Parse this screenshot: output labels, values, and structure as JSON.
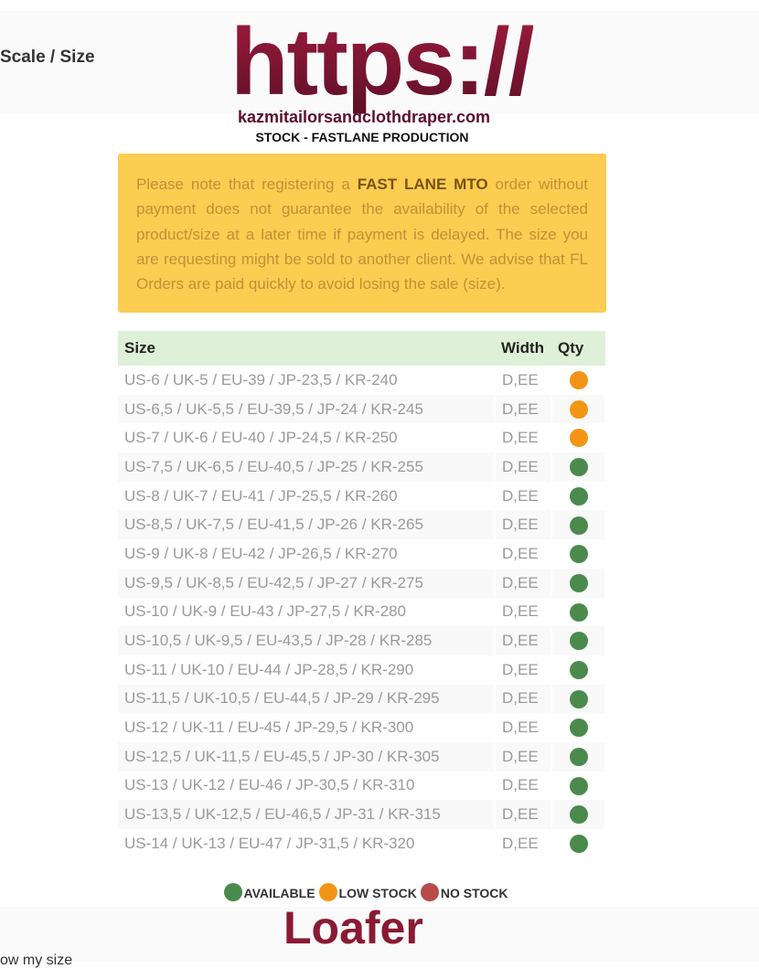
{
  "header": {
    "scale_label": "Scale / Size",
    "watermark": "https://",
    "site": "kazmitailorsandclothdraper.com",
    "subtitle": "STOCK - FASTLANE PRODUCTION"
  },
  "notice": {
    "before": "Please note that registering a",
    "bold": "FAST LANE MTO",
    "after": "order without payment does not guarantee the availability of the selected product/size at a later time if payment is delayed. The size you are requesting might be sold to another client. We advise that FL Orders are paid quickly to avoid losing the sale (size)."
  },
  "table": {
    "headers": [
      "Size",
      "Width",
      "Qty"
    ],
    "rows": [
      {
        "size": "US-6 / UK-5 / EU-39 / JP-23,5 / KR-240",
        "width": "D,EE",
        "qty_color": "#f39415"
      },
      {
        "size": "US-6,5 / UK-5,5 / EU-39,5 / JP-24 / KR-245",
        "width": "D,EE",
        "qty_color": "#f39415"
      },
      {
        "size": "US-7 / UK-6 / EU-40 / JP-24,5 / KR-250",
        "width": "D,EE",
        "qty_color": "#f39415"
      },
      {
        "size": "US-7,5 / UK-6,5 / EU-40,5 / JP-25 / KR-255",
        "width": "D,EE",
        "qty_color": "#4a8a4d"
      },
      {
        "size": "US-8 / UK-7 / EU-41 / JP-25,5 / KR-260",
        "width": "D,EE",
        "qty_color": "#4a8a4d"
      },
      {
        "size": "US-8,5 / UK-7,5 / EU-41,5 / JP-26 / KR-265",
        "width": "D,EE",
        "qty_color": "#4a8a4d"
      },
      {
        "size": "US-9 / UK-8 / EU-42 / JP-26,5 / KR-270",
        "width": "D,EE",
        "qty_color": "#4a8a4d"
      },
      {
        "size": "US-9,5 / UK-8,5 / EU-42,5 / JP-27 / KR-275",
        "width": "D,EE",
        "qty_color": "#4a8a4d"
      },
      {
        "size": "US-10 / UK-9 / EU-43 / JP-27,5 / KR-280",
        "width": "D,EE",
        "qty_color": "#4a8a4d"
      },
      {
        "size": "US-10,5 / UK-9,5 / EU-43,5 / JP-28 / KR-285",
        "width": "D,EE",
        "qty_color": "#4a8a4d"
      },
      {
        "size": "US-11 / UK-10 / EU-44 / JP-28,5 / KR-290",
        "width": "D,EE",
        "qty_color": "#4a8a4d"
      },
      {
        "size": "US-11,5 / UK-10,5 / EU-44,5 / JP-29 / KR-295",
        "width": "D,EE",
        "qty_color": "#4a8a4d"
      },
      {
        "size": "US-12 / UK-11 / EU-45 / JP-29,5 / KR-300",
        "width": "D,EE",
        "qty_color": "#4a8a4d"
      },
      {
        "size": "US-12,5 / UK-11,5 / EU-45,5 / JP-30 / KR-305",
        "width": "D,EE",
        "qty_color": "#4a8a4d"
      },
      {
        "size": "US-13 / UK-12 / EU-46 / JP-30,5 / KR-310",
        "width": "D,EE",
        "qty_color": "#4a8a4d"
      },
      {
        "size": "US-13,5 / UK-12,5 / EU-46,5 / JP-31 / KR-315",
        "width": "D,EE",
        "qty_color": "#4a8a4d"
      },
      {
        "size": "US-14 / UK-13 / EU-47 / JP-31,5 / KR-320",
        "width": "D,EE",
        "qty_color": "#4a8a4d"
      }
    ]
  },
  "legend": [
    {
      "label": "AVAILABLE",
      "color": "#4a8a4d"
    },
    {
      "label": "LOW STOCK",
      "color": "#f39415"
    },
    {
      "label": "NO STOCK",
      "color": "#b84a48"
    }
  ],
  "footer": {
    "product": "Loafer",
    "link": "ow my size"
  }
}
